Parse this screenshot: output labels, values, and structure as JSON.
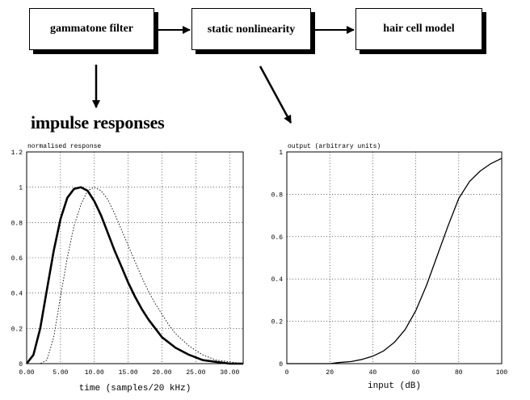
{
  "blocks": {
    "gammatone": "gammatone filter",
    "nonlinearity": "static nonlinearity",
    "hair_cell": "hair cell model"
  },
  "heading": "impulse responses",
  "left_plot": {
    "ylabel": "normalised response",
    "xlabel": "time (samples/20 kHz)",
    "y_ticks": [
      "1.2",
      "1",
      "0.8",
      "0.6",
      "0.4",
      "0.2",
      "0"
    ],
    "x_ticks": [
      "0.00",
      "5.00",
      "10.00",
      "15.00",
      "20.00",
      "25.00",
      "30.00"
    ]
  },
  "right_plot": {
    "ylabel": "output (arbitrary units)",
    "xlabel": "input (dB)",
    "y_ticks": [
      "1",
      "0.8",
      "0.6",
      "0.4",
      "0.2",
      "0"
    ],
    "x_ticks": [
      "0",
      "20",
      "40",
      "60",
      "80",
      "100"
    ]
  },
  "chart_data": [
    {
      "type": "line",
      "ylabel": "normalised response",
      "xlabel": "time (samples/20 kHz)",
      "xlim": [
        0,
        32
      ],
      "ylim": [
        0,
        1.2
      ],
      "grid": true,
      "series": [
        {
          "style": "solid-thick",
          "x": [
            0,
            1,
            2,
            3,
            4,
            5,
            6,
            7,
            8,
            9,
            10,
            11,
            12,
            13,
            14,
            15,
            16,
            17,
            18,
            19,
            20,
            22,
            24,
            26,
            28,
            30,
            32
          ],
          "y": [
            0.0,
            0.05,
            0.2,
            0.42,
            0.64,
            0.82,
            0.94,
            0.99,
            1.0,
            0.98,
            0.92,
            0.84,
            0.74,
            0.64,
            0.55,
            0.46,
            0.38,
            0.31,
            0.25,
            0.2,
            0.15,
            0.09,
            0.05,
            0.02,
            0.01,
            0.0,
            0.0
          ]
        },
        {
          "style": "dotted",
          "x": [
            0,
            2,
            3,
            4,
            5,
            6,
            7,
            8,
            9,
            10,
            11,
            12,
            13,
            14,
            15,
            16,
            17,
            18,
            19,
            20,
            21,
            22,
            24,
            26,
            28,
            30,
            32
          ],
          "y": [
            0.0,
            0.0,
            0.02,
            0.15,
            0.38,
            0.6,
            0.78,
            0.9,
            0.98,
            1.0,
            0.98,
            0.93,
            0.85,
            0.76,
            0.67,
            0.58,
            0.49,
            0.41,
            0.34,
            0.28,
            0.22,
            0.17,
            0.1,
            0.05,
            0.02,
            0.01,
            0.0
          ]
        }
      ]
    },
    {
      "type": "line",
      "ylabel": "output (arbitrary units)",
      "xlabel": "input (dB)",
      "xlim": [
        0,
        100
      ],
      "ylim": [
        0,
        1
      ],
      "grid": true,
      "series": [
        {
          "style": "solid",
          "x": [
            0,
            20,
            24,
            30,
            35,
            40,
            45,
            50,
            55,
            60,
            65,
            70,
            75,
            80,
            85,
            90,
            95,
            100
          ],
          "y": [
            0.0,
            0.0,
            0.005,
            0.01,
            0.02,
            0.035,
            0.06,
            0.1,
            0.16,
            0.25,
            0.37,
            0.51,
            0.65,
            0.78,
            0.86,
            0.91,
            0.945,
            0.97
          ]
        }
      ]
    }
  ]
}
